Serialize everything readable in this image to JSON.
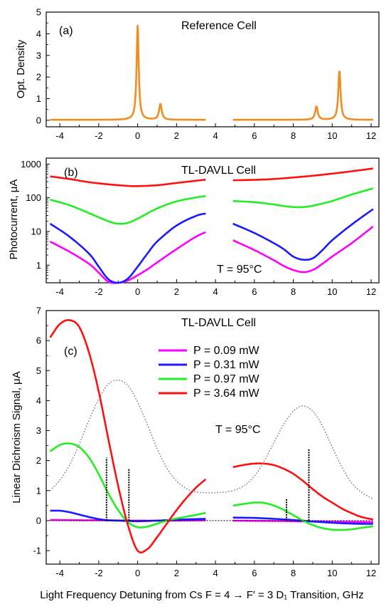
{
  "xlabel": "Light Frequency Detuning from Cs F = 4 → F′ = 3 D₁ Transition, GHz",
  "chart_data": [
    {
      "type": "line",
      "panel": "(a)",
      "title": "Reference Cell",
      "ylabel": "Opt. Density",
      "xlim": [
        -4.7,
        12.4
      ],
      "ylim": [
        -0.3,
        5
      ],
      "yticks": [
        0,
        1,
        2,
        3,
        4,
        5
      ],
      "xticks": [
        -4,
        -2,
        0,
        2,
        4,
        6,
        8,
        10,
        12
      ],
      "grid": false,
      "series": [
        {
          "color": "#f28c1e",
          "segments": [
            [
              -4.5,
              3.5
            ],
            [
              4.9,
              12.1
            ]
          ],
          "baseline": 0.02,
          "peaks": [
            {
              "x": 0.0,
              "height": 4.35,
              "width": 0.13
            },
            {
              "x": 1.17,
              "height": 0.73,
              "width": 0.16
            },
            {
              "x": 9.19,
              "height": 0.62,
              "width": 0.16
            },
            {
              "x": 10.37,
              "height": 2.27,
              "width": 0.14
            }
          ]
        }
      ]
    },
    {
      "type": "line",
      "panel": "(b)",
      "title": "TL-DAVLL Cell",
      "ylabel": "Photocurrent, μA",
      "yscale": "log",
      "xlim": [
        -4.7,
        12.4
      ],
      "ylim": [
        0.3,
        1500
      ],
      "yticks": [
        1,
        10,
        100,
        1000
      ],
      "xticks": [
        -4,
        -2,
        0,
        2,
        4,
        6,
        8,
        10,
        12
      ],
      "annotation": "T = 95°C",
      "grid": false,
      "series": [
        {
          "color": "#ff00ff",
          "x1": [
            -4.5,
            -3.5,
            -2.5,
            -2.0,
            -1.5,
            -1.0,
            -0.5,
            0.0,
            0.5,
            1.0,
            2.0,
            3.0,
            3.5
          ],
          "y1": [
            5,
            2.5,
            1.1,
            0.6,
            0.32,
            0.3,
            0.35,
            0.5,
            0.75,
            1.2,
            3,
            7,
            9.5
          ],
          "x2": [
            4.9,
            6,
            7,
            7.5,
            8,
            8.5,
            9,
            9.5,
            10,
            11,
            12.1
          ],
          "y2": [
            5.5,
            2.8,
            1.4,
            0.95,
            0.72,
            0.62,
            0.72,
            1.1,
            1.8,
            4.5,
            14
          ]
        },
        {
          "color": "#1a1aff",
          "x1": [
            -4.5,
            -3.5,
            -2.5,
            -2.0,
            -1.5,
            -1.0,
            -0.5,
            0.0,
            0.5,
            1.0,
            2.0,
            3.0,
            3.5
          ],
          "y1": [
            17,
            7,
            2.2,
            0.9,
            0.38,
            0.3,
            0.4,
            0.9,
            2.2,
            5,
            15,
            29,
            34
          ],
          "x2": [
            4.9,
            6,
            7,
            7.5,
            8,
            8.5,
            9,
            9.5,
            10,
            11,
            12.1
          ],
          "y2": [
            17,
            9,
            4.5,
            3,
            1.8,
            1.45,
            1.6,
            2.8,
            5.5,
            16,
            46
          ]
        },
        {
          "color": "#22ee22",
          "x1": [
            -4.5,
            -3.5,
            -2.5,
            -1.5,
            -1.0,
            -0.5,
            0.0,
            1.0,
            2.0,
            3.0,
            3.5
          ],
          "y1": [
            88,
            60,
            35,
            20,
            17,
            18,
            24,
            48,
            78,
            102,
            112
          ],
          "x2": [
            4.9,
            6,
            7,
            7.5,
            8,
            8.5,
            9,
            10,
            11,
            12.1
          ],
          "y2": [
            80,
            74,
            63,
            57,
            53,
            53,
            58,
            80,
            125,
            190
          ]
        },
        {
          "color": "#ff1010",
          "x1": [
            -4.5,
            -3.5,
            -2.5,
            -1.5,
            -0.5,
            0.0,
            1.0,
            2.0,
            3.0,
            3.5
          ],
          "y1": [
            430,
            360,
            290,
            250,
            225,
            222,
            235,
            275,
            320,
            345
          ],
          "x2": [
            4.9,
            6,
            7,
            8,
            9,
            10,
            11,
            12.1
          ],
          "y2": [
            330,
            340,
            360,
            400,
            450,
            520,
            610,
            740
          ]
        }
      ]
    },
    {
      "type": "line",
      "panel": "(c)",
      "title": "TL-DAVLL Cell",
      "ylabel": "Linear Dichroism Signal, μA",
      "xlim": [
        -4.7,
        12.4
      ],
      "ylim": [
        -1.45,
        7
      ],
      "yticks": [
        -1,
        0,
        1,
        2,
        3,
        4,
        5,
        6,
        7
      ],
      "xticks": [
        -4,
        -2,
        0,
        2,
        4,
        6,
        8,
        10,
        12
      ],
      "annotation": "T = 95°C",
      "legend": [
        "P = 0.09 mW",
        "P = 0.31 mW",
        "P = 0.97 mW",
        "P = 3.64 mW"
      ],
      "grid": false,
      "series": [
        {
          "name": "P = 0.09 mW",
          "color": "#ff00ff",
          "x1": [
            -4.5,
            -2,
            0,
            2,
            3.5
          ],
          "y1": [
            0.02,
            0.01,
            0,
            0.0,
            0.01
          ],
          "x2": [
            4.9,
            8,
            12.1
          ],
          "y2": [
            0.0,
            -0.02,
            -0.05
          ]
        },
        {
          "name": "P = 0.31 mW",
          "color": "#1a1aff",
          "x1": [
            -4.5,
            -4.0,
            -3.5,
            -3.0,
            -2.5,
            -2.0,
            -1.5,
            -1.0,
            0,
            1,
            2,
            3.5
          ],
          "y1": [
            0.33,
            0.33,
            0.28,
            0.2,
            0.12,
            0.05,
            0.01,
            0.0,
            -0.02,
            0.0,
            0.03,
            0.06
          ],
          "x2": [
            4.9,
            6,
            7,
            8,
            9,
            10,
            11,
            12.1
          ],
          "y2": [
            0.1,
            0.09,
            0.06,
            0.02,
            -0.03,
            -0.07,
            -0.1,
            -0.11
          ]
        },
        {
          "name": "P = 0.97 mW",
          "color": "#22ee22",
          "x1": [
            -4.5,
            -4.0,
            -3.5,
            -3.0,
            -2.5,
            -2.0,
            -1.5,
            -1.0,
            -0.5,
            0.0,
            0.5,
            1.0,
            1.5,
            2.0,
            2.5,
            3.0,
            3.5
          ],
          "y1": [
            2.3,
            2.52,
            2.57,
            2.45,
            2.1,
            1.55,
            0.9,
            0.35,
            -0.05,
            -0.22,
            -0.2,
            -0.1,
            0.0,
            0.07,
            0.13,
            0.19,
            0.26
          ],
          "x2": [
            4.9,
            5.5,
            6.0,
            6.5,
            7.0,
            7.5,
            8.0,
            8.5,
            9.0,
            9.5,
            10.0,
            10.5,
            11.0,
            11.5,
            12.1
          ],
          "y2": [
            0.5,
            0.56,
            0.6,
            0.59,
            0.5,
            0.36,
            0.18,
            0.0,
            -0.15,
            -0.25,
            -0.3,
            -0.31,
            -0.29,
            -0.24,
            -0.19
          ]
        },
        {
          "name": "P = 3.64 mW",
          "color": "#ff1010",
          "x1": [
            -4.5,
            -4.0,
            -3.5,
            -3.0,
            -2.5,
            -2.0,
            -1.5,
            -1.0,
            -0.5,
            0.0,
            0.5,
            1.0,
            1.5,
            2.0,
            2.5,
            3.0,
            3.5
          ],
          "y1": [
            6.1,
            6.55,
            6.68,
            6.45,
            5.6,
            4.3,
            2.7,
            1.15,
            -0.15,
            -1.0,
            -0.95,
            -0.55,
            -0.1,
            0.35,
            0.75,
            1.1,
            1.38
          ],
          "x2": [
            4.9,
            5.5,
            6.0,
            6.5,
            7.0,
            7.5,
            8.0,
            8.5,
            9.0,
            9.5,
            10.0,
            10.5,
            11.0,
            11.5,
            12.1
          ],
          "y2": [
            1.78,
            1.86,
            1.9,
            1.9,
            1.85,
            1.73,
            1.56,
            1.32,
            1.05,
            0.8,
            0.6,
            0.4,
            0.25,
            0.12,
            0.04
          ]
        },
        {
          "name": "reference",
          "color": "#808080",
          "style": "dotted",
          "x": [
            -4.5,
            -4.0,
            -3.5,
            -3.0,
            -2.5,
            -2.0,
            -1.5,
            -1.0,
            -0.5,
            0.0,
            0.5,
            1.0,
            1.5,
            2.0,
            2.5,
            3.0,
            3.5,
            4.0,
            4.5,
            5.0,
            5.5,
            6.0,
            6.5,
            7.0,
            7.5,
            8.0,
            8.5,
            9.0,
            9.5,
            10.0,
            10.5,
            11.0,
            11.5,
            12.1
          ],
          "y": [
            1.0,
            1.35,
            1.85,
            2.55,
            3.35,
            4.05,
            4.55,
            4.68,
            4.5,
            3.95,
            3.2,
            2.4,
            1.75,
            1.32,
            1.07,
            0.96,
            0.93,
            0.93,
            0.95,
            1.02,
            1.18,
            1.48,
            1.98,
            2.6,
            3.2,
            3.65,
            3.82,
            3.65,
            3.15,
            2.45,
            1.78,
            1.26,
            0.95,
            0.72
          ]
        }
      ],
      "sticks": [
        {
          "x": -1.6,
          "y": 2.1
        },
        {
          "x": -0.45,
          "y": 1.75
        },
        {
          "x": 7.65,
          "y": 0.72
        },
        {
          "x": 8.8,
          "y": 2.4
        }
      ]
    }
  ]
}
